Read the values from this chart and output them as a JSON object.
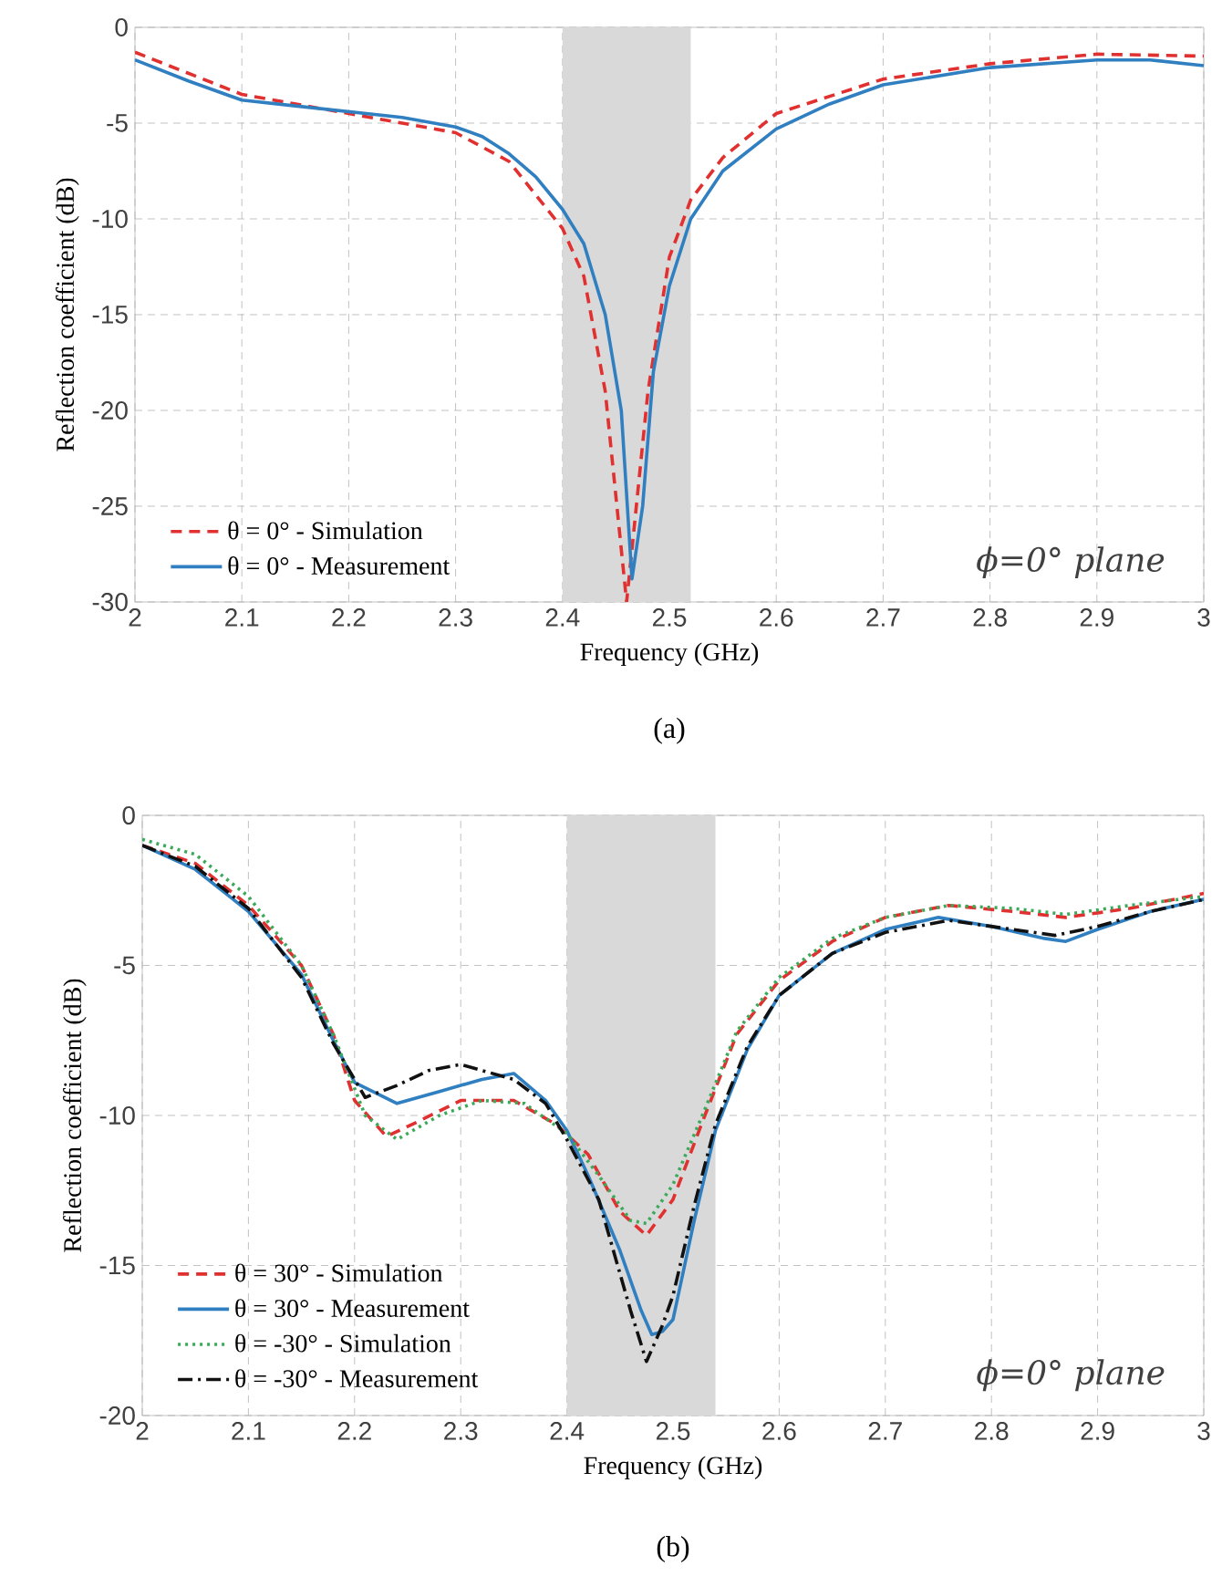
{
  "chart_data": [
    {
      "type": "line",
      "xlabel": "Frequency (GHz)",
      "ylabel": "Reflection coefficient (dB)",
      "xlim": [
        2,
        3
      ],
      "ylim": [
        -30,
        0
      ],
      "xticks": [
        2,
        2.1,
        2.2,
        2.3,
        2.4,
        2.5,
        2.6,
        2.7,
        2.8,
        2.9,
        3
      ],
      "yticks": [
        -30,
        -25,
        -20,
        -15,
        -10,
        -5,
        0
      ],
      "grid": true,
      "legend": "bottom left",
      "bands": [
        {
          "axis": "x",
          "from": 2.4,
          "to": 2.52,
          "color": "#d9d9d9"
        }
      ],
      "annotations": [
        "ϕ=0° plane",
        "(a)"
      ],
      "series": [
        {
          "name": "θ = 0° - Simulation",
          "color": "#e0302f",
          "line_style": "dashed",
          "x": [
            2.0,
            2.1,
            2.2,
            2.3,
            2.35,
            2.4,
            2.42,
            2.44,
            2.46,
            2.48,
            2.5,
            2.52,
            2.55,
            2.6,
            2.7,
            2.8,
            2.9,
            3.0
          ],
          "values": [
            -1.3,
            -3.5,
            -4.5,
            -5.5,
            -7,
            -10.5,
            -13,
            -19,
            -30,
            -19,
            -12,
            -9,
            -6.8,
            -4.5,
            -2.7,
            -1.9,
            -1.4,
            -1.5
          ]
        },
        {
          "name": "θ = 0° - Measurement",
          "color": "#2f7fc1",
          "line_style": "solid",
          "x": [
            2.0,
            2.05,
            2.1,
            2.15,
            2.2,
            2.25,
            2.3,
            2.325,
            2.35,
            2.375,
            2.4,
            2.42,
            2.44,
            2.455,
            2.465,
            2.475,
            2.485,
            2.5,
            2.52,
            2.55,
            2.6,
            2.65,
            2.7,
            2.8,
            2.9,
            2.95,
            3.0
          ],
          "values": [
            -1.7,
            -2.8,
            -3.8,
            -4.1,
            -4.4,
            -4.7,
            -5.2,
            -5.7,
            -6.6,
            -7.8,
            -9.5,
            -11.3,
            -15,
            -20,
            -28.8,
            -25,
            -18,
            -13.5,
            -10,
            -7.5,
            -5.3,
            -4,
            -3,
            -2.1,
            -1.7,
            -1.7,
            -2.0
          ]
        }
      ]
    },
    {
      "type": "line",
      "xlabel": "Frequency (GHz)",
      "ylabel": "Reflection coefficient (dB)",
      "xlim": [
        2,
        3
      ],
      "ylim": [
        -20,
        0
      ],
      "xticks": [
        2,
        2.1,
        2.2,
        2.3,
        2.4,
        2.5,
        2.6,
        2.7,
        2.8,
        2.9,
        3
      ],
      "yticks": [
        -20,
        -15,
        -10,
        -5,
        0
      ],
      "grid": true,
      "legend": "bottom left",
      "bands": [
        {
          "axis": "x",
          "from": 2.4,
          "to": 2.54,
          "color": "#d9d9d9"
        }
      ],
      "annotations": [
        "ϕ=0° plane",
        "(b)"
      ],
      "series": [
        {
          "name": "θ = 30° - Simulation",
          "color": "#e0302f",
          "line_style": "dashed",
          "x": [
            2.0,
            2.05,
            2.1,
            2.15,
            2.18,
            2.2,
            2.23,
            2.26,
            2.3,
            2.35,
            2.39,
            2.42,
            2.45,
            2.475,
            2.5,
            2.53,
            2.56,
            2.6,
            2.65,
            2.7,
            2.76,
            2.82,
            2.87,
            2.93,
            3.0
          ],
          "values": [
            -1,
            -1.6,
            -3,
            -5,
            -7.3,
            -9.5,
            -10.7,
            -10.2,
            -9.5,
            -9.5,
            -10.3,
            -11.3,
            -13.2,
            -14,
            -12.8,
            -10,
            -7.3,
            -5.5,
            -4.2,
            -3.4,
            -3.0,
            -3.2,
            -3.4,
            -3.1,
            -2.6
          ]
        },
        {
          "name": "θ = 30° - Measurement",
          "color": "#2f7fc1",
          "line_style": "solid",
          "x": [
            2.0,
            2.05,
            2.1,
            2.15,
            2.18,
            2.2,
            2.24,
            2.28,
            2.32,
            2.35,
            2.38,
            2.4,
            2.42,
            2.45,
            2.47,
            2.48,
            2.49,
            2.5,
            2.52,
            2.54,
            2.57,
            2.6,
            2.65,
            2.7,
            2.75,
            2.8,
            2.85,
            2.87,
            2.9,
            2.95,
            3.0
          ],
          "values": [
            -1,
            -1.8,
            -3.2,
            -5.3,
            -7.5,
            -8.9,
            -9.6,
            -9.2,
            -8.8,
            -8.6,
            -9.5,
            -10.5,
            -12,
            -14.5,
            -16.5,
            -17.3,
            -17.2,
            -16.8,
            -13.5,
            -10.5,
            -7.8,
            -6,
            -4.6,
            -3.8,
            -3.4,
            -3.7,
            -4.1,
            -4.2,
            -3.8,
            -3.2,
            -2.8
          ]
        },
        {
          "name": "θ = -30° - Simulation",
          "color": "#3aaa5a",
          "line_style": "dotted",
          "x": [
            2.0,
            2.05,
            2.1,
            2.15,
            2.18,
            2.21,
            2.24,
            2.28,
            2.32,
            2.36,
            2.4,
            2.43,
            2.46,
            2.475,
            2.5,
            2.53,
            2.56,
            2.6,
            2.65,
            2.7,
            2.76,
            2.82,
            2.87,
            2.93,
            3.0
          ],
          "values": [
            -0.8,
            -1.3,
            -2.7,
            -5,
            -7.3,
            -10,
            -10.8,
            -10,
            -9.5,
            -9.6,
            -10.6,
            -12,
            -13.5,
            -13.6,
            -12.3,
            -9.8,
            -7.2,
            -5.4,
            -4.1,
            -3.4,
            -3.0,
            -3.1,
            -3.3,
            -3.0,
            -2.7
          ]
        },
        {
          "name": "θ = -30° - Measurement",
          "color": "#111111",
          "line_style": "dashdot",
          "x": [
            2.0,
            2.05,
            2.1,
            2.15,
            2.18,
            2.21,
            2.24,
            2.27,
            2.3,
            2.35,
            2.38,
            2.4,
            2.43,
            2.46,
            2.475,
            2.49,
            2.5,
            2.52,
            2.54,
            2.57,
            2.6,
            2.65,
            2.7,
            2.76,
            2.82,
            2.86,
            2.9,
            2.95,
            3.0
          ],
          "values": [
            -1,
            -1.7,
            -3.1,
            -5.4,
            -7.6,
            -9.4,
            -9.0,
            -8.5,
            -8.3,
            -8.8,
            -9.6,
            -10.8,
            -12.8,
            -16.5,
            -18.2,
            -17,
            -16,
            -13,
            -10.3,
            -7.7,
            -6,
            -4.6,
            -3.9,
            -3.5,
            -3.8,
            -4.0,
            -3.7,
            -3.2,
            -2.8
          ]
        }
      ]
    }
  ]
}
